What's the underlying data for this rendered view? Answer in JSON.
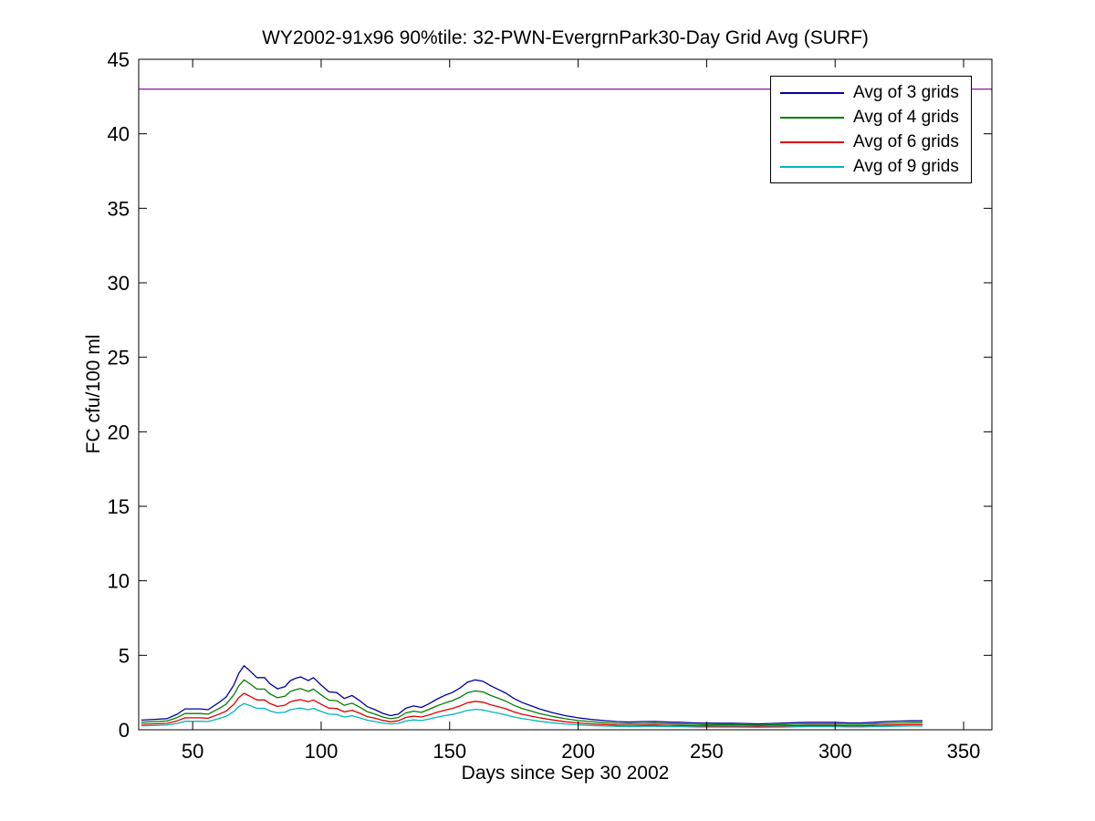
{
  "figure": {
    "background_color": "#ffffff",
    "axes_line_color": "#000000"
  },
  "chart_data": {
    "type": "line",
    "title": "WY2002-91x96 90%tile: 32-PWN-EvergrnPark30-Day Grid Avg (SURF)",
    "xlabel": "Days since Sep 30 2002",
    "ylabel": "FC cfu/100 ml",
    "xlim": [
      29,
      361
    ],
    "ylim": [
      0,
      45
    ],
    "xticks": [
      50,
      100,
      150,
      200,
      250,
      300,
      350
    ],
    "yticks": [
      0,
      5,
      10,
      15,
      20,
      25,
      30,
      35,
      40,
      45
    ],
    "grid": false,
    "legend_position": "top-right",
    "threshold_line": {
      "value": 43,
      "color": "#8E2D9B"
    },
    "x": [
      30,
      35,
      40,
      44,
      47,
      50,
      53,
      56,
      60,
      63,
      66,
      68,
      70,
      72,
      75,
      78,
      80,
      83,
      86,
      88,
      90,
      92,
      95,
      97,
      100,
      103,
      106,
      109,
      112,
      115,
      118,
      121,
      124,
      127,
      130,
      133,
      136,
      139,
      142,
      145,
      148,
      151,
      154,
      157,
      160,
      163,
      166,
      169,
      172,
      175,
      178,
      181,
      185,
      190,
      195,
      200,
      205,
      210,
      215,
      220,
      225,
      230,
      235,
      240,
      245,
      250,
      255,
      260,
      265,
      270,
      275,
      280,
      285,
      290,
      295,
      300,
      305,
      310,
      315,
      320,
      325,
      330,
      334
    ],
    "series": [
      {
        "name": "Avg of 3 grids",
        "color": "#0000A0",
        "values": [
          0.65,
          0.7,
          0.75,
          1.05,
          1.4,
          1.4,
          1.4,
          1.35,
          1.8,
          2.2,
          3.0,
          3.8,
          4.3,
          4.0,
          3.5,
          3.5,
          3.1,
          2.75,
          2.9,
          3.3,
          3.45,
          3.55,
          3.3,
          3.5,
          3.0,
          2.55,
          2.5,
          2.1,
          2.3,
          1.95,
          1.55,
          1.35,
          1.1,
          0.95,
          1.05,
          1.45,
          1.6,
          1.5,
          1.75,
          2.05,
          2.3,
          2.5,
          2.8,
          3.2,
          3.35,
          3.25,
          2.95,
          2.7,
          2.45,
          2.1,
          1.85,
          1.65,
          1.4,
          1.15,
          0.95,
          0.8,
          0.7,
          0.62,
          0.55,
          0.52,
          0.55,
          0.56,
          0.52,
          0.5,
          0.46,
          0.45,
          0.44,
          0.44,
          0.42,
          0.4,
          0.42,
          0.45,
          0.48,
          0.5,
          0.5,
          0.5,
          0.46,
          0.46,
          0.5,
          0.55,
          0.58,
          0.6,
          0.6
        ]
      },
      {
        "name": "Avg of 4 grids",
        "color": "#007F00",
        "values": [
          0.51,
          0.55,
          0.59,
          0.82,
          1.09,
          1.09,
          1.09,
          1.05,
          1.4,
          1.72,
          2.34,
          2.96,
          3.35,
          3.12,
          2.73,
          2.73,
          2.42,
          2.15,
          2.26,
          2.57,
          2.69,
          2.77,
          2.57,
          2.73,
          2.34,
          1.99,
          1.95,
          1.64,
          1.79,
          1.52,
          1.21,
          1.05,
          0.86,
          0.74,
          0.82,
          1.13,
          1.25,
          1.17,
          1.37,
          1.6,
          1.79,
          1.95,
          2.18,
          2.5,
          2.61,
          2.54,
          2.3,
          2.11,
          1.91,
          1.64,
          1.44,
          1.29,
          1.09,
          0.9,
          0.74,
          0.62,
          0.55,
          0.48,
          0.43,
          0.41,
          0.43,
          0.44,
          0.41,
          0.39,
          0.36,
          0.35,
          0.34,
          0.34,
          0.33,
          0.31,
          0.33,
          0.35,
          0.37,
          0.39,
          0.39,
          0.39,
          0.36,
          0.36,
          0.39,
          0.43,
          0.45,
          0.47,
          0.47
        ]
      },
      {
        "name": "Avg of 6 grids",
        "color": "#DD0000",
        "values": [
          0.37,
          0.4,
          0.43,
          0.6,
          0.8,
          0.8,
          0.8,
          0.77,
          1.03,
          1.25,
          1.71,
          2.17,
          2.45,
          2.28,
          2.0,
          2.0,
          1.77,
          1.57,
          1.65,
          1.88,
          1.97,
          2.02,
          1.88,
          2.0,
          1.71,
          1.45,
          1.43,
          1.2,
          1.31,
          1.11,
          0.88,
          0.77,
          0.63,
          0.54,
          0.6,
          0.83,
          0.91,
          0.86,
          1.0,
          1.17,
          1.31,
          1.43,
          1.6,
          1.82,
          1.91,
          1.85,
          1.68,
          1.54,
          1.4,
          1.2,
          1.05,
          0.94,
          0.8,
          0.66,
          0.54,
          0.46,
          0.4,
          0.35,
          0.31,
          0.3,
          0.31,
          0.32,
          0.3,
          0.29,
          0.26,
          0.26,
          0.25,
          0.25,
          0.24,
          0.23,
          0.24,
          0.26,
          0.27,
          0.29,
          0.29,
          0.29,
          0.26,
          0.26,
          0.29,
          0.31,
          0.33,
          0.34,
          0.34
        ]
      },
      {
        "name": "Avg of 9 grids",
        "color": "#00B7B7",
        "values": [
          0.27,
          0.29,
          0.31,
          0.43,
          0.57,
          0.57,
          0.57,
          0.55,
          0.74,
          0.9,
          1.23,
          1.56,
          1.76,
          1.64,
          1.44,
          1.44,
          1.27,
          1.13,
          1.19,
          1.35,
          1.41,
          1.46,
          1.35,
          1.44,
          1.23,
          1.05,
          1.03,
          0.86,
          0.94,
          0.8,
          0.64,
          0.55,
          0.45,
          0.39,
          0.43,
          0.59,
          0.66,
          0.62,
          0.72,
          0.84,
          0.94,
          1.03,
          1.15,
          1.31,
          1.37,
          1.33,
          1.21,
          1.11,
          1.0,
          0.86,
          0.76,
          0.68,
          0.57,
          0.47,
          0.39,
          0.33,
          0.29,
          0.25,
          0.23,
          0.21,
          0.23,
          0.23,
          0.21,
          0.21,
          0.19,
          0.18,
          0.18,
          0.18,
          0.17,
          0.16,
          0.17,
          0.18,
          0.2,
          0.21,
          0.21,
          0.21,
          0.19,
          0.19,
          0.21,
          0.23,
          0.24,
          0.25,
          0.25
        ]
      }
    ]
  }
}
